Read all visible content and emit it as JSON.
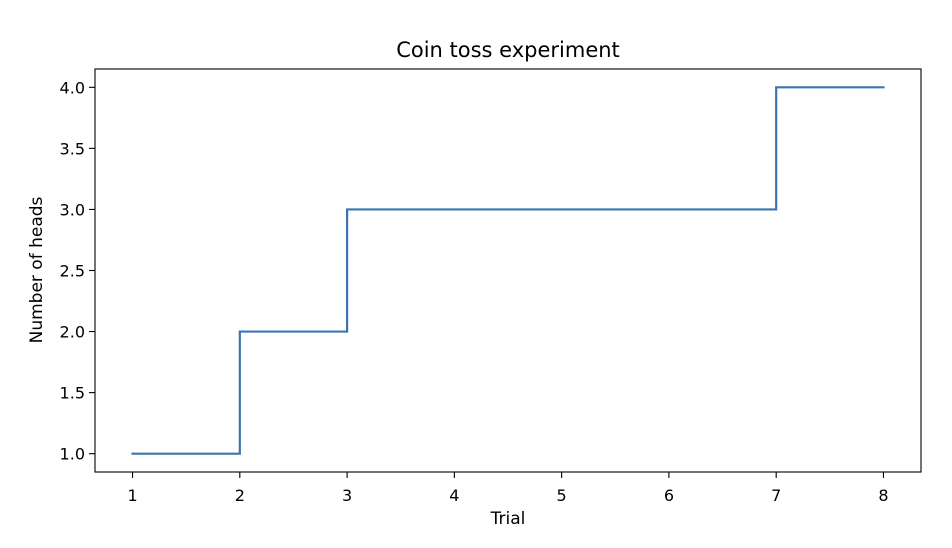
{
  "chart_data": {
    "type": "line",
    "step": "post",
    "title": "Coin toss experiment",
    "xlabel": "Trial",
    "ylabel": "Number of heads",
    "x": [
      1,
      2,
      3,
      4,
      5,
      6,
      7,
      8
    ],
    "y": [
      1,
      2,
      3,
      3,
      3,
      3,
      4,
      4
    ],
    "xlim": [
      0.65,
      8.35
    ],
    "ylim": [
      0.85,
      4.15
    ],
    "xticks": [
      1,
      2,
      3,
      4,
      5,
      6,
      7,
      8
    ],
    "xtick_labels": [
      "1",
      "2",
      "3",
      "4",
      "5",
      "6",
      "7",
      "8"
    ],
    "yticks": [
      1.0,
      1.5,
      2.0,
      2.5,
      3.0,
      3.5,
      4.0
    ],
    "ytick_labels": [
      "1.0",
      "1.5",
      "2.0",
      "2.5",
      "3.0",
      "3.5",
      "4.0"
    ],
    "grid": false,
    "legend": "none",
    "line_color": "#3b75af",
    "axis_color": "#000000"
  }
}
